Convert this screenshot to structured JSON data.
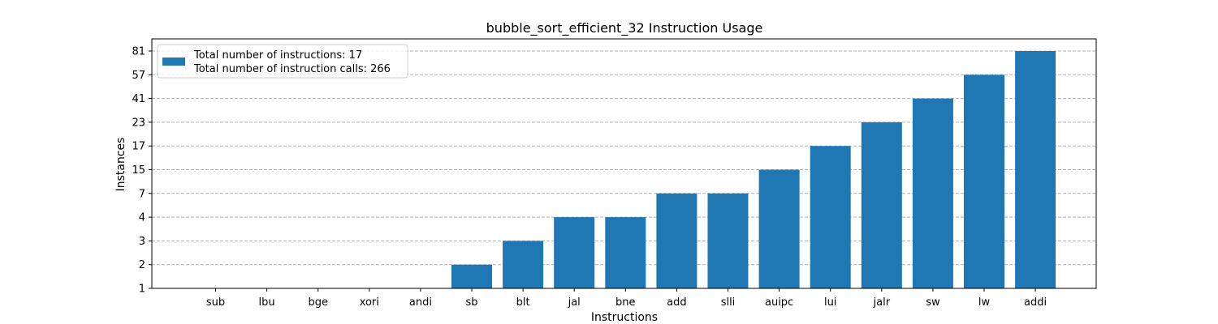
{
  "chart_data": {
    "type": "bar",
    "title": "bubble_sort_efficient_32 Instruction Usage",
    "xlabel": "Instructions",
    "ylabel": "Instances",
    "categories": [
      "sub",
      "lbu",
      "bge",
      "xori",
      "andi",
      "sb",
      "blt",
      "jal",
      "bne",
      "add",
      "slli",
      "auipc",
      "lui",
      "jalr",
      "sw",
      "lw",
      "addi"
    ],
    "values": [
      1,
      1,
      1,
      1,
      1,
      2,
      3,
      4,
      4,
      7,
      7,
      15,
      17,
      23,
      41,
      57,
      81
    ],
    "y_ticks": [
      "1",
      "2",
      "3",
      "4",
      "7",
      "15",
      "17",
      "23",
      "41",
      "57",
      "81"
    ],
    "legend": {
      "placement": "top-left",
      "lines": [
        "Total number of instructions: 17",
        "Total number of instruction calls: 266"
      ]
    },
    "grid": "horizontal dashed",
    "bar_color": "#1f77b4",
    "grid_color": "#b0b0b0"
  }
}
